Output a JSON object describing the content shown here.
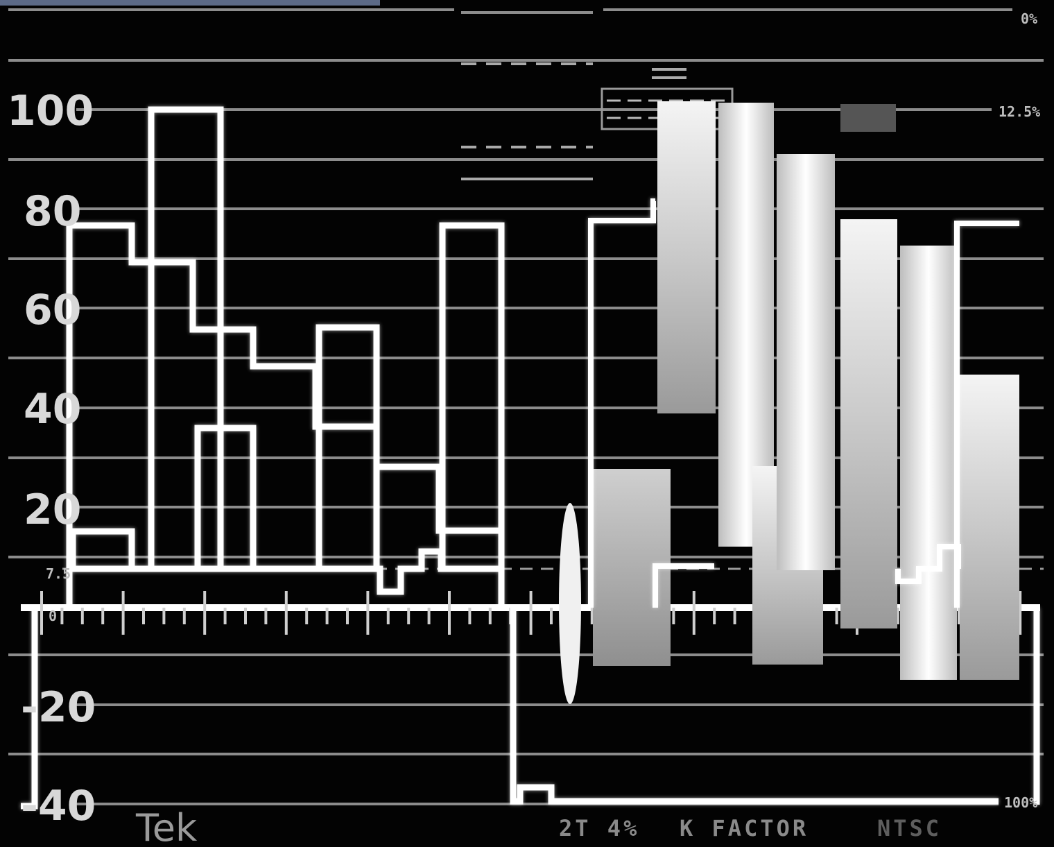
{
  "scope": {
    "scale_labels": [
      "100",
      "80",
      "60",
      "40",
      "20",
      "7.5",
      "0",
      "-20",
      "-40"
    ],
    "corner_labels": {
      "top_right": "0%",
      "upper_right": "12.5%",
      "bottom_right": "100%"
    },
    "brand": "Tek",
    "bottom_readout": {
      "k_factor_value": "2T 4%",
      "k_factor_label": "K FACTOR",
      "standard": "NTSC"
    },
    "colors": {
      "background": "#030303",
      "trace": "#ffffff",
      "graticule": "#8c8c8c",
      "status_bar": "#5c6a87"
    }
  }
}
